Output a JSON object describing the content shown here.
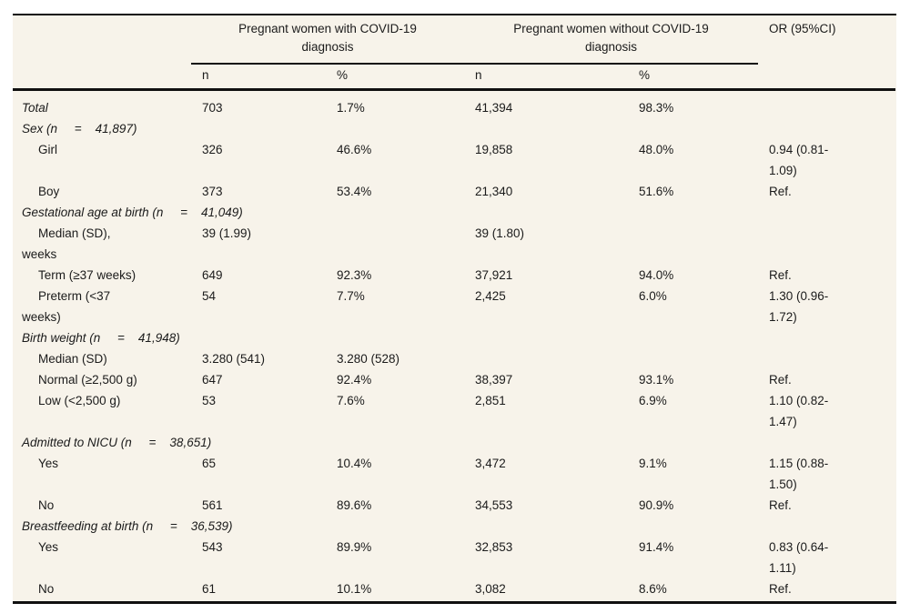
{
  "table": {
    "group_headers": {
      "with_covid": "Pregnant women with COVID-19\ndiagnosis",
      "without_covid": "Pregnant women without COVID-19\ndiagnosis",
      "or": "OR (95%CI)"
    },
    "sub_headers": {
      "n_with": "n",
      "pct_with": "%",
      "n_without": "n",
      "pct_without": "%"
    },
    "rows": [
      {
        "kind": "data",
        "indent": false,
        "italic": true,
        "label": "Total",
        "n1": "703",
        "p1": "1.7%",
        "n2": "41,394",
        "p2": "98.3%",
        "or": ""
      },
      {
        "kind": "section",
        "label": "Sex (n     =    41,897)"
      },
      {
        "kind": "data",
        "indent": true,
        "italic": false,
        "label": "Girl",
        "n1": "326",
        "p1": "46.6%",
        "n2": "19,858",
        "p2": "48.0%",
        "or": "0.94 (0.81-\n1.09)"
      },
      {
        "kind": "data",
        "indent": true,
        "italic": false,
        "label": "Boy",
        "n1": "373",
        "p1": "53.4%",
        "n2": "21,340",
        "p2": "51.6%",
        "or": "Ref."
      },
      {
        "kind": "section",
        "label": "Gestational age at birth (n     =    41,049)"
      },
      {
        "kind": "data",
        "indent": true,
        "italic": false,
        "label": "Median (SD),\nweeks",
        "n1": "39 (1.99)",
        "p1": "",
        "n2": "39 (1.80)",
        "p2": "",
        "or": ""
      },
      {
        "kind": "data",
        "indent": true,
        "italic": false,
        "label": "Term (≥37 weeks)",
        "n1": "649",
        "p1": "92.3%",
        "n2": "37,921",
        "p2": "94.0%",
        "or": "Ref."
      },
      {
        "kind": "data",
        "indent": true,
        "italic": false,
        "label": "Preterm (<37\nweeks)",
        "n1": "54",
        "p1": "7.7%",
        "n2": "2,425",
        "p2": "6.0%",
        "or": "1.30 (0.96-\n1.72)"
      },
      {
        "kind": "section",
        "label": "Birth weight (n     =    41,948)"
      },
      {
        "kind": "data",
        "indent": true,
        "italic": false,
        "label": "Median (SD)",
        "n1": "3.280 (541)",
        "p1": "3.280 (528)",
        "n2": "",
        "p2": "",
        "or": ""
      },
      {
        "kind": "data",
        "indent": true,
        "italic": false,
        "label": "Normal (≥2,500 g)",
        "n1": "647",
        "p1": "92.4%",
        "n2": "38,397",
        "p2": "93.1%",
        "or": "Ref."
      },
      {
        "kind": "data",
        "indent": true,
        "italic": false,
        "label": "Low (<2,500 g)",
        "n1": "53",
        "p1": "7.6%",
        "n2": "2,851",
        "p2": "6.9%",
        "or": "1.10 (0.82-\n1.47)"
      },
      {
        "kind": "section",
        "label": "Admitted to NICU (n     =    38,651)"
      },
      {
        "kind": "data",
        "indent": true,
        "italic": false,
        "label": "Yes",
        "n1": "65",
        "p1": "10.4%",
        "n2": "3,472",
        "p2": "9.1%",
        "or": "1.15 (0.88-\n1.50)"
      },
      {
        "kind": "data",
        "indent": true,
        "italic": false,
        "label": "No",
        "n1": "561",
        "p1": "89.6%",
        "n2": "34,553",
        "p2": "90.9%",
        "or": "Ref."
      },
      {
        "kind": "section",
        "label": "Breastfeeding at birth (n     =    36,539)"
      },
      {
        "kind": "data",
        "indent": true,
        "italic": false,
        "label": "Yes",
        "n1": "543",
        "p1": "89.9%",
        "n2": "32,853",
        "p2": "91.4%",
        "or": "0.83 (0.64-\n1.11)"
      },
      {
        "kind": "data",
        "indent": true,
        "italic": false,
        "label": "No",
        "n1": "61",
        "p1": "10.1%",
        "n2": "3,082",
        "p2": "8.6%",
        "or": "Ref."
      }
    ],
    "colors": {
      "table_background": "#f7f3ea",
      "rule": "#101010",
      "text": "#1b1b1b",
      "page_background": "#ffffff"
    }
  }
}
